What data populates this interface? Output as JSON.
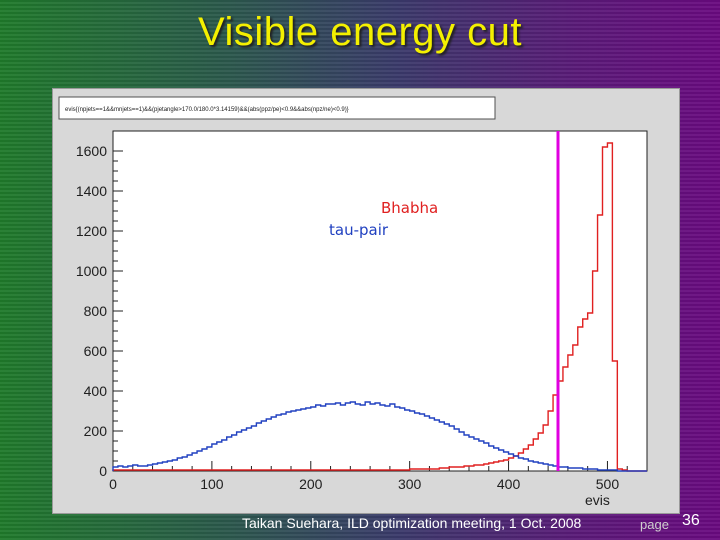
{
  "slide": {
    "title": "Visible energy cut",
    "footer": "Taikan Suehara, ILD optimization meeting, 1 Oct. 2008",
    "page_label": "page",
    "page_number": "36"
  },
  "chart_data": {
    "type": "line",
    "title": "evis{(npjets==1&&mnjets==1)&&(pjetangle>170.0/180.0*3.14159)&&(abs(ppz/pe)<0.9&&abs(npz/ne)<0.9)}",
    "xlabel": "evis",
    "ylabel": "",
    "xlim": [
      0,
      540
    ],
    "ylim": [
      0,
      1700
    ],
    "xticks": [
      0,
      100,
      200,
      300,
      400,
      500
    ],
    "yticks": [
      0,
      200,
      400,
      600,
      800,
      1000,
      1200,
      1400,
      1600
    ],
    "cut_line": {
      "x": 450,
      "color": "#e000e0"
    },
    "legend": [
      {
        "label": "Bhabha",
        "color": "#e02020"
      },
      {
        "label": "tau-pair",
        "color": "#2040c0"
      }
    ],
    "bin_width": 5,
    "series": [
      {
        "name": "Bhabha",
        "color": "#e02020",
        "x": [
          0,
          5,
          10,
          15,
          20,
          25,
          30,
          35,
          40,
          45,
          50,
          55,
          60,
          65,
          70,
          75,
          80,
          85,
          90,
          95,
          100,
          105,
          110,
          115,
          120,
          125,
          130,
          135,
          140,
          145,
          150,
          155,
          160,
          165,
          170,
          175,
          180,
          185,
          190,
          195,
          200,
          205,
          210,
          215,
          220,
          225,
          230,
          235,
          240,
          245,
          250,
          255,
          260,
          265,
          270,
          275,
          280,
          285,
          290,
          295,
          300,
          305,
          310,
          315,
          320,
          325,
          330,
          335,
          340,
          345,
          350,
          355,
          360,
          365,
          370,
          375,
          380,
          385,
          390,
          395,
          400,
          405,
          410,
          415,
          420,
          425,
          430,
          435,
          440,
          445,
          450,
          455,
          460,
          465,
          470,
          475,
          480,
          485,
          490,
          495,
          500,
          505,
          510,
          515,
          520,
          525,
          530,
          535
        ],
        "values": [
          5,
          5,
          5,
          5,
          5,
          5,
          5,
          5,
          5,
          5,
          5,
          5,
          5,
          5,
          5,
          5,
          5,
          5,
          5,
          5,
          5,
          5,
          5,
          5,
          5,
          5,
          5,
          5,
          5,
          5,
          5,
          5,
          5,
          5,
          5,
          5,
          5,
          5,
          5,
          5,
          5,
          5,
          5,
          5,
          5,
          5,
          5,
          5,
          5,
          5,
          5,
          5,
          5,
          5,
          5,
          5,
          5,
          5,
          5,
          5,
          10,
          10,
          10,
          10,
          10,
          10,
          15,
          15,
          20,
          20,
          20,
          25,
          25,
          30,
          30,
          35,
          40,
          45,
          50,
          55,
          65,
          75,
          90,
          110,
          130,
          160,
          190,
          230,
          300,
          380,
          450,
          520,
          580,
          630,
          720,
          760,
          790,
          1000,
          1280,
          1620,
          1640,
          550,
          10,
          5,
          0,
          0,
          0,
          0
        ]
      },
      {
        "name": "tau-pair",
        "color": "#2040c0",
        "x": [
          0,
          5,
          10,
          15,
          20,
          25,
          30,
          35,
          40,
          45,
          50,
          55,
          60,
          65,
          70,
          75,
          80,
          85,
          90,
          95,
          100,
          105,
          110,
          115,
          120,
          125,
          130,
          135,
          140,
          145,
          150,
          155,
          160,
          165,
          170,
          175,
          180,
          185,
          190,
          195,
          200,
          205,
          210,
          215,
          220,
          225,
          230,
          235,
          240,
          245,
          250,
          255,
          260,
          265,
          270,
          275,
          280,
          285,
          290,
          295,
          300,
          305,
          310,
          315,
          320,
          325,
          330,
          335,
          340,
          345,
          350,
          355,
          360,
          365,
          370,
          375,
          380,
          385,
          390,
          395,
          400,
          405,
          410,
          415,
          420,
          425,
          430,
          435,
          440,
          445,
          450,
          455,
          460,
          465,
          470,
          475,
          480,
          485,
          490,
          495,
          500,
          505,
          510,
          515,
          520,
          525,
          530,
          535
        ],
        "values": [
          20,
          25,
          20,
          25,
          30,
          25,
          25,
          30,
          35,
          40,
          45,
          50,
          55,
          65,
          70,
          80,
          90,
          100,
          110,
          120,
          135,
          145,
          155,
          170,
          180,
          195,
          205,
          215,
          225,
          240,
          250,
          260,
          270,
          280,
          285,
          295,
          300,
          305,
          310,
          315,
          320,
          330,
          325,
          335,
          335,
          340,
          330,
          340,
          345,
          335,
          330,
          345,
          335,
          340,
          330,
          325,
          335,
          320,
          315,
          305,
          300,
          290,
          285,
          275,
          265,
          255,
          245,
          235,
          225,
          210,
          195,
          180,
          170,
          160,
          150,
          140,
          125,
          115,
          105,
          95,
          85,
          75,
          65,
          60,
          50,
          45,
          40,
          35,
          30,
          25,
          20,
          20,
          15,
          15,
          15,
          10,
          10,
          10,
          5,
          5,
          5,
          5,
          0,
          0,
          0,
          0,
          0,
          0
        ]
      }
    ]
  }
}
